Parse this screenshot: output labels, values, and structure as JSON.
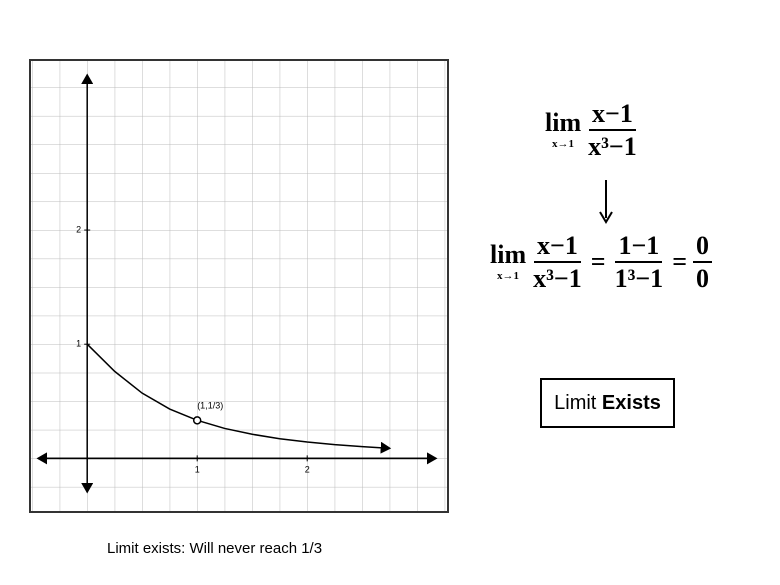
{
  "chart_data": {
    "type": "line",
    "x": [
      0,
      0.25,
      0.5,
      0.75,
      1,
      1.25,
      1.5,
      1.75,
      2,
      2.25,
      2.5,
      2.75
    ],
    "values": [
      1,
      0.762,
      0.571,
      0.432,
      0.333,
      0.262,
      0.211,
      0.172,
      0.143,
      0.12,
      0.103,
      0.088
    ],
    "color": "#000000",
    "xlim": [
      -0.52,
      3.28
    ],
    "ylim": [
      -0.47,
      3.49
    ],
    "xticks": [
      1,
      2
    ],
    "yticks": [
      1,
      2
    ],
    "grid": true,
    "annotation": {
      "text": "(1,1/3)",
      "x": 1,
      "y": 0.333
    }
  },
  "equation_1": {
    "lim": "lim",
    "sub": "x→1",
    "numerator": "x−1",
    "denominator": "x³−1"
  },
  "equation_2": {
    "lim": "lim",
    "sub": "x→1",
    "equals": "=",
    "terms": [
      {
        "numerator": "x−1",
        "denominator": "x³−1"
      },
      {
        "numerator": "1−1",
        "denominator": "1³−1"
      },
      {
        "numerator": "0",
        "denominator": "0"
      }
    ]
  },
  "box": {
    "text_plain": "Limit",
    "text_bold": "Exists"
  },
  "caption": "Limit exists: Will never reach 1/3"
}
